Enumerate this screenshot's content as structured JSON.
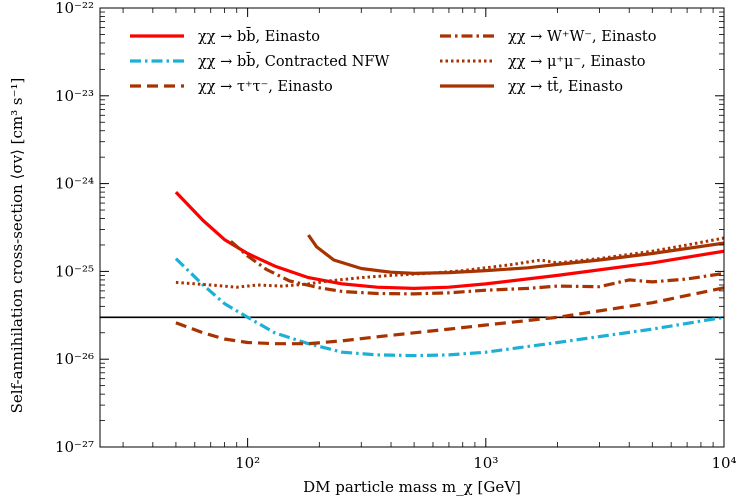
{
  "chart_data": {
    "type": "line",
    "title": "",
    "xlabel": "DM particle mass m_χ [GeV]",
    "ylabel": "Self-annihilation cross-section ⟨σv⟩ [cm³ s⁻¹]",
    "xscale": "log",
    "yscale": "log",
    "xlim": [
      24,
      10000
    ],
    "ylim": [
      1e-27,
      1e-22
    ],
    "x_ticks": [
      {
        "value": 100,
        "label": "10²"
      },
      {
        "value": 1000,
        "label": "10³"
      },
      {
        "value": 10000,
        "label": "10⁴"
      }
    ],
    "y_ticks": [
      {
        "value": 1e-27,
        "label": "10⁻²⁷"
      },
      {
        "value": 1e-26,
        "label": "10⁻²⁶"
      },
      {
        "value": 1e-25,
        "label": "10⁻²⁵"
      },
      {
        "value": 1e-24,
        "label": "10⁻²⁴"
      },
      {
        "value": 1e-23,
        "label": "10⁻²³"
      },
      {
        "value": 1e-22,
        "label": "10⁻²²"
      }
    ],
    "grid": false,
    "legend_position": "top",
    "reference_line": {
      "y": 3e-26,
      "color": "#000000"
    },
    "series": [
      {
        "name": "χχ → bb̄, Einasto",
        "color": "#ff0000",
        "style": "solid",
        "width": 3.2,
        "x": [
          50,
          65,
          80,
          100,
          130,
          180,
          250,
          350,
          500,
          700,
          1000,
          2000,
          5000,
          10000
        ],
        "y": [
          8e-25,
          3.8e-25,
          2.3e-25,
          1.6e-25,
          1.15e-25,
          8.5e-26,
          7.2e-26,
          6.6e-26,
          6.4e-26,
          6.6e-26,
          7.2e-26,
          9e-26,
          1.25e-25,
          1.7e-25
        ]
      },
      {
        "name": "χχ → bb̄, Contracted NFW",
        "color": "#1cb0d6",
        "style": "dashdot",
        "width": 3.2,
        "x": [
          50,
          65,
          80,
          100,
          130,
          180,
          250,
          350,
          500,
          700,
          1000,
          2000,
          5000,
          10000
        ],
        "y": [
          1.4e-25,
          7e-26,
          4.3e-26,
          3e-26,
          2e-26,
          1.5e-26,
          1.2e-26,
          1.12e-26,
          1.1e-26,
          1.12e-26,
          1.2e-26,
          1.55e-26,
          2.2e-26,
          3e-26
        ]
      },
      {
        "name": "χχ → τ⁺τ⁻, Einasto",
        "color": "#a83200",
        "style": "dashed",
        "width": 3.2,
        "x": [
          50,
          65,
          80,
          100,
          130,
          180,
          250,
          350,
          500,
          700,
          1000,
          2000,
          5000,
          10000
        ],
        "y": [
          2.6e-26,
          2e-26,
          1.7e-26,
          1.55e-26,
          1.5e-26,
          1.5e-26,
          1.62e-26,
          1.8e-26,
          2e-26,
          2.2e-26,
          2.45e-26,
          3e-26,
          4.4e-26,
          6.5e-26
        ]
      },
      {
        "name": "χχ → W⁺W⁻, Einasto",
        "color": "#a83200",
        "style": "dashdot",
        "width": 3.2,
        "x": [
          85,
          100,
          120,
          150,
          200,
          250,
          350,
          500,
          700,
          1000,
          1500,
          2000,
          3000,
          4000,
          5000,
          7000,
          10000
        ],
        "y": [
          2.2e-25,
          1.5e-25,
          1.05e-25,
          7.8e-26,
          6.5e-26,
          5.9e-26,
          5.6e-26,
          5.55e-26,
          5.7e-26,
          6.1e-26,
          6.4e-26,
          6.8e-26,
          6.7e-26,
          8e-26,
          7.6e-26,
          8.2e-26,
          9.5e-26
        ]
      },
      {
        "name": "χχ → μ⁺μ⁻, Einasto",
        "color": "#a83200",
        "style": "dotted",
        "width": 3.0,
        "x": [
          50,
          70,
          90,
          110,
          140,
          180,
          220,
          300,
          400,
          600,
          800,
          1000,
          1300,
          1700,
          2000,
          3000,
          5000,
          7000,
          10000
        ],
        "y": [
          7.5e-26,
          7e-26,
          6.6e-26,
          7e-26,
          6.8e-26,
          7.2e-26,
          7.8e-26,
          8.5e-26,
          9e-26,
          9.6e-26,
          1.02e-25,
          1.1e-25,
          1.2e-25,
          1.35e-25,
          1.25e-25,
          1.4e-25,
          1.7e-25,
          2e-25,
          2.4e-25
        ]
      },
      {
        "name": "χχ → tt̄, Einasto",
        "color": "#a83200",
        "style": "solid",
        "width": 3.2,
        "x": [
          180,
          195,
          230,
          300,
          400,
          500,
          700,
          1000,
          1500,
          2000,
          3000,
          5000,
          10000
        ],
        "y": [
          2.6e-25,
          1.9e-25,
          1.35e-25,
          1.08e-25,
          9.8e-26,
          9.5e-26,
          9.7e-26,
          1.02e-25,
          1.1e-25,
          1.2e-25,
          1.35e-25,
          1.6e-25,
          2.1e-25
        ]
      }
    ]
  }
}
